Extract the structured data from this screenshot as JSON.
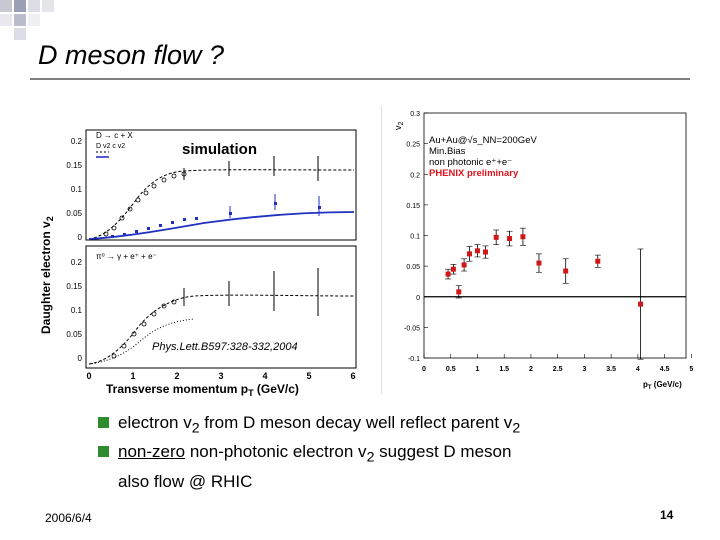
{
  "slide": {
    "title": "D meson flow ?",
    "date": "2006/6/4",
    "page_number": "14",
    "accent_color": "#2e8b2e"
  },
  "bullets": [
    {
      "parts": [
        "electron v",
        "2",
        " from D meson decay well reflect parent v",
        "2"
      ]
    },
    {
      "parts": [
        "non-zero",
        " non-photonic electron v",
        "2",
        " suggest D meson"
      ],
      "cont": "also flow @ RHIC"
    }
  ],
  "left_figure": {
    "simulation_label": "simulation",
    "reference": "Phys.Lett.B597:328-332,2004",
    "ylabel": "Daughter electron v",
    "ylabel_sub": "2",
    "xlabel": "Transverse momentum p",
    "xlabel_sub": "T",
    "xlabel_unit": " (GeV/c)",
    "top_legend": [
      "D → c + X",
      "D v2   c v2"
    ],
    "bottom_legend": "π⁰ → γ + e⁺ + e⁻",
    "top_yticks": [
      "0.2",
      "0.15",
      "0.1",
      "0.05",
      "0"
    ],
    "bottom_yticks": [
      "0.2",
      "0.15",
      "0.1",
      "0.05",
      "0"
    ],
    "xticks": [
      "0",
      "1",
      "2",
      "3",
      "4",
      "5",
      "6"
    ]
  },
  "chart_data": {
    "type": "scatter",
    "title": "",
    "xlabel": "p",
    "xlabel_sub": "T",
    "xlabel_unit": " (GeV/c)",
    "ylabel": "v",
    "ylabel_sub": "2",
    "xlim": [
      0,
      4.9
    ],
    "ylim": [
      -0.1,
      0.3
    ],
    "xticks": [
      "0",
      "0.5",
      "1",
      "1.5",
      "2",
      "2.5",
      "3",
      "3.5",
      "4",
      "4.5",
      "5"
    ],
    "yticks": [
      "0.3",
      "0.25",
      "0.2",
      "0.15",
      "0.1",
      "0.05",
      "0",
      "-0.05",
      "-0.1"
    ],
    "legend": [
      "Au+Au@√s_NN=200GeV",
      "Min.Bias",
      "non photonic e⁺+e⁻",
      "PHENIX preliminary"
    ],
    "legend_color": "#e0141e",
    "series": [
      {
        "color": "#d01818",
        "x": [
          0.45,
          0.55,
          0.65,
          0.75,
          0.85,
          1.0,
          1.15,
          1.35,
          1.6,
          1.85,
          2.15,
          2.65,
          3.25,
          4.05
        ],
        "y": [
          0.037,
          0.045,
          0.008,
          0.052,
          0.07,
          0.075,
          0.073,
          0.097,
          0.095,
          0.098,
          0.055,
          0.042,
          0.058,
          -0.012
        ],
        "err": [
          0.008,
          0.008,
          0.01,
          0.01,
          0.012,
          0.01,
          0.01,
          0.012,
          0.012,
          0.014,
          0.015,
          0.02,
          0.01,
          0.09
        ]
      }
    ]
  }
}
